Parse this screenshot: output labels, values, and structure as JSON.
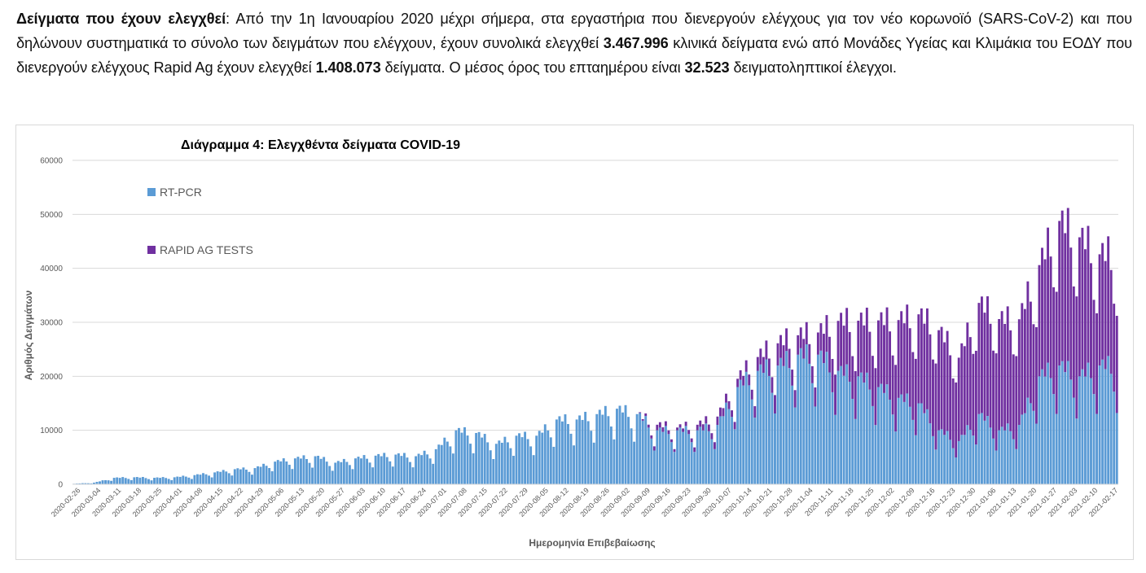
{
  "paragraph": {
    "lead": "Δείγματα που έχουν ελεγχθεί",
    "p1": ":  Από την 1η Ιανουαρίου 2020 μέχρι σήμερα, στα εργαστήρια που διενεργούν ελέγχους για τον νέο κορωνοϊό (SARS-CoV-2) και που δηλώνουν συστηματικά το σύνολο των δειγμάτων που ελέγχουν, έχουν συνολικά ελεγχθεί ",
    "n1": "3.467.996",
    "p2": " κλινικά δείγματα ενώ από Μονάδες Υγείας και Κλιμάκια του ΕΟΔΥ που διενεργούν ελέγχους Rapid Ag έχουν ελεγχθεί ",
    "n2": "1.408.073",
    "p3": " δείγματα. Ο μέσος όρος του επταημέρου είναι ",
    "n3": "32.523",
    "p4": " δειγματοληπτικοί έλεγχοι."
  },
  "colors": {
    "rtpcr": "#5b9bd5",
    "rapid": "#7030a0",
    "grid": "#d9d9d9",
    "text": "#595959"
  },
  "chart_data": {
    "type": "bar",
    "stacked": true,
    "title": "Διάγραμμα 4: Ελεγχθέντα δείγματα COVID-19",
    "xlabel": "Ημερομηνία Επιβεβαίωσης",
    "ylabel": "Αριθμός Δειγμάτων",
    "ylim": [
      0,
      60000
    ],
    "yticks": [
      "0",
      "10000",
      "20000",
      "30000",
      "40000",
      "50000",
      "60000"
    ],
    "x_start": "2020-02-26",
    "x_end": "2021-02-20",
    "x_tick_labels": [
      "2020-02-26",
      "2020-03-04",
      "2020-03-11",
      "2020-03-18",
      "2020-03-25",
      "2020-04-01",
      "2020-04-08",
      "2020-04-15",
      "2020-04-22",
      "2020-04-29",
      "2020-05-06",
      "2020-05-13",
      "2020-05-20",
      "2020-05-27",
      "2020-06-03",
      "2020-06-10",
      "2020-06-17",
      "2020-06-24",
      "2020-07-01",
      "2020-07-08",
      "2020-07-15",
      "2020-07-22",
      "2020-07-29",
      "2020-08-05",
      "2020-08-12",
      "2020-08-19",
      "2020-08-26",
      "2020-09-02",
      "2020-09-09",
      "2020-09-16",
      "2020-09-23",
      "2020-09-30",
      "2020-10-07",
      "2020-10-14",
      "2020-10-21",
      "2020-10-28",
      "2020-11-04",
      "2020-11-11",
      "2020-11-18",
      "2020-11-25",
      "2020-12-02",
      "2020-12-09",
      "2020-12-16",
      "2020-12-23",
      "2020-12-30",
      "2021-01-06",
      "2021-01-13",
      "2021-01-20",
      "2021-01-27",
      "2021-02-03",
      "2021-02-10",
      "2021-02-17"
    ],
    "legend": {
      "position": "top-left",
      "entries": [
        "RT-PCR",
        "RAPID AG TESTS"
      ]
    },
    "series": [
      {
        "name": "RT-PCR",
        "weekly_approx": [
          100,
          300,
          1200,
          1300,
          1200,
          1300,
          1700,
          2200,
          2800,
          3000,
          4200,
          4800,
          5200,
          4000,
          4800,
          5300,
          5500,
          5200,
          6500,
          10000,
          9500,
          7500,
          9000,
          9000,
          12000,
          12000,
          13000,
          14000,
          13000,
          10000,
          10000,
          10000,
          11000,
          18000,
          21000,
          22000,
          24000,
          24000,
          21000,
          20000,
          18000,
          16000,
          15000,
          10000,
          8000,
          13000,
          10000,
          11000,
          20000,
          22000,
          20000,
          22000
        ]
      },
      {
        "name": "RAPID AG TESTS",
        "weekly_approx": [
          0,
          0,
          0,
          0,
          0,
          0,
          0,
          0,
          0,
          0,
          0,
          0,
          0,
          0,
          0,
          0,
          0,
          0,
          0,
          0,
          0,
          0,
          0,
          0,
          0,
          0,
          0,
          0,
          0,
          1000,
          500,
          1000,
          1500,
          1500,
          2500,
          4000,
          3500,
          4000,
          9000,
          10000,
          12000,
          14000,
          16000,
          18000,
          15000,
          20000,
          20000,
          19000,
          20000,
          26000,
          25000,
          20000
        ]
      }
    ]
  }
}
